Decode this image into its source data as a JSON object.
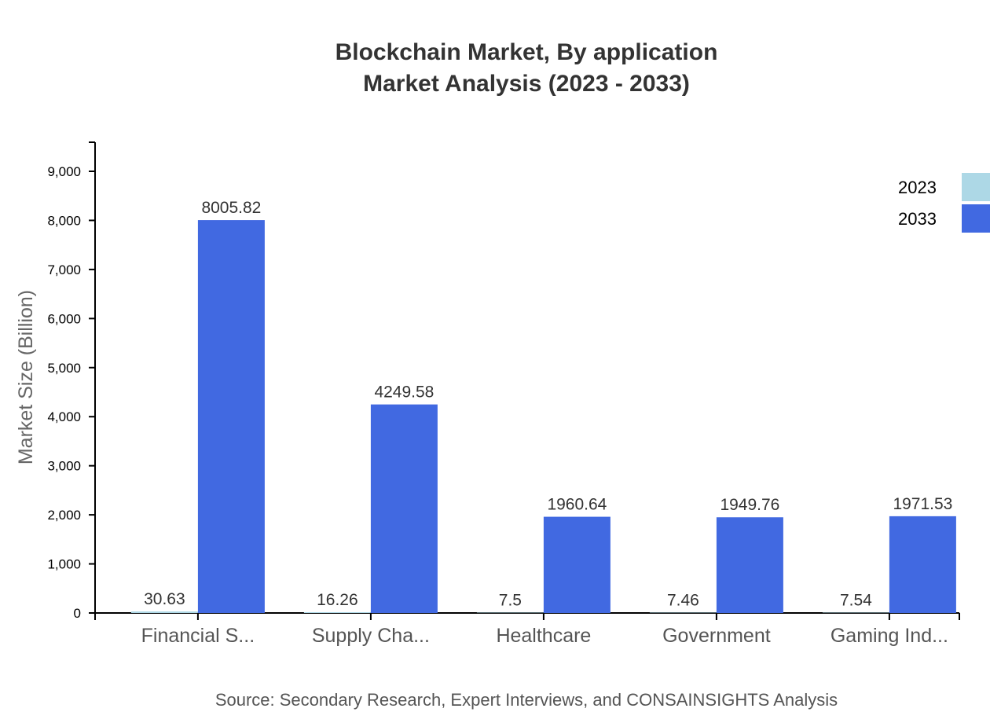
{
  "chart_data": {
    "type": "bar",
    "title": "Blockchain Market, By application",
    "subtitle": "Market Analysis (2023 - 2033)",
    "xlabel": "",
    "ylabel": "Market Size (Billion)",
    "categories": [
      "Financial S...",
      "Supply Cha...",
      "Healthcare",
      "Government",
      "Gaming Ind..."
    ],
    "series": [
      {
        "name": "2023",
        "color": "#add8e6",
        "values": [
          30.63,
          16.26,
          7.5,
          7.46,
          7.54
        ]
      },
      {
        "name": "2033",
        "color": "#4169e1",
        "values": [
          8005.82,
          4249.58,
          1960.64,
          1949.76,
          1971.53
        ]
      }
    ],
    "ylim": [
      0,
      9600
    ],
    "yticks": [
      0,
      1000,
      2000,
      3000,
      4000,
      5000,
      6000,
      7000,
      8000,
      9000
    ],
    "ytick_labels": [
      "0",
      "1,000",
      "2,000",
      "3,000",
      "4,000",
      "5,000",
      "6,000",
      "7,000",
      "8,000",
      "9,000"
    ],
    "grid": false,
    "legend_position": "top-right",
    "source": "Source: Secondary Research, Expert Interviews, and CONSAINSIGHTS Analysis"
  }
}
